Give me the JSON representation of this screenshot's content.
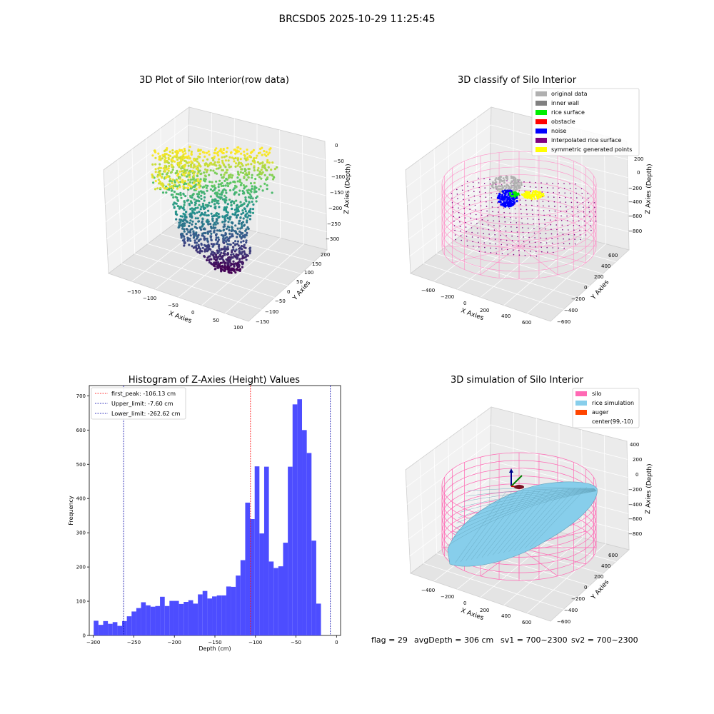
{
  "figure": {
    "suptitle": "BRCSD05 2025-10-29 11:25:45"
  },
  "footer": {
    "flag": "flag = 29",
    "avg_depth": "avgDepth = 306 cm",
    "sv1": "sv1 = 700~2300",
    "sv2": "sv2 = 700~2300"
  },
  "chart_data": [
    {
      "type": "scatter",
      "projection": "3d",
      "title": "3D Plot of Silo Interior(row data)",
      "xlabel": "X Axies",
      "ylabel": "Y Axies",
      "zlabel": "Z Axies (Depth)",
      "x_ticks": [
        "−150",
        "−100",
        "−50",
        "0",
        "50",
        "100"
      ],
      "y_ticks": [
        "−150",
        "−100",
        "−50",
        "0",
        "50",
        "100",
        "150",
        "200"
      ],
      "z_ticks": [
        "0",
        "−50",
        "−100",
        "−150",
        "−200",
        "−250",
        "−300"
      ],
      "colormap": "viridis",
      "zlim": [
        -310,
        0
      ]
    },
    {
      "type": "scatter",
      "projection": "3d",
      "title": "3D classify of Silo Interior",
      "xlabel": "X Axies",
      "ylabel": "Y Axies",
      "zlabel": "Z Axies (Depth)",
      "x_ticks": [
        "−400",
        "−200",
        "0",
        "200",
        "400",
        "600"
      ],
      "y_ticks": [
        "−600",
        "−400",
        "−200",
        "0",
        "200",
        "400",
        "600"
      ],
      "z_ticks": [
        "200",
        "0",
        "−200",
        "−400",
        "−600",
        "−800"
      ],
      "legend": [
        {
          "label": "original data",
          "color": "#b0b0b0"
        },
        {
          "label": "inner wall",
          "color": "#808080"
        },
        {
          "label": "rice surface",
          "color": "#00ee00"
        },
        {
          "label": "obstacle",
          "color": "#ff0000"
        },
        {
          "label": "noise",
          "color": "#0000ff"
        },
        {
          "label": "interpolated rice surface",
          "color": "#800080"
        },
        {
          "label": "symmetric generated points",
          "color": "#ffff00"
        }
      ],
      "legend_position": "top-right"
    },
    {
      "type": "bar",
      "title": "Histogram of Z-Axies (Height) Values",
      "xlabel": "Depth (cm)",
      "ylabel": "Frequency",
      "xlim": [
        -305,
        5
      ],
      "ylim": [
        0,
        730
      ],
      "x_ticks": [
        "−300",
        "−250",
        "−200",
        "−150",
        "−100",
        "−50",
        "0"
      ],
      "y_ticks": [
        "0",
        "100",
        "200",
        "300",
        "400",
        "500",
        "600",
        "700"
      ],
      "bar_color": "#4d4dff",
      "bins": {
        "start": -299.5,
        "width": 5.84
      },
      "values": [
        43,
        31,
        42,
        34,
        39,
        28,
        42,
        56,
        70,
        80,
        97,
        88,
        84,
        86,
        113,
        86,
        101,
        101,
        92,
        98,
        103,
        93,
        120,
        130,
        108,
        114,
        117,
        117,
        143,
        142,
        175,
        220,
        388,
        340,
        494,
        298,
        493,
        216,
        197,
        202,
        271,
        493,
        675,
        690,
        600,
        533,
        277,
        93
      ],
      "lines": [
        {
          "label": "first_peak: -106.13 cm",
          "x": -106.13,
          "color": "#ff0000"
        },
        {
          "label": "Upper_limit: -7.60 cm",
          "x": -7.6,
          "color": "#0000aa"
        },
        {
          "label": "Lower_limit: -262.62 cm",
          "x": -262.62,
          "color": "#0000aa"
        }
      ],
      "legend_position": "top-left"
    },
    {
      "type": "surface",
      "projection": "3d",
      "title": "3D simulation of Silo Interior",
      "xlabel": "X Axies",
      "ylabel": "Y Axies",
      "zlabel": "Z Axies (Depth)",
      "x_ticks": [
        "−400",
        "−200",
        "0",
        "200",
        "400",
        "600"
      ],
      "y_ticks": [
        "−600",
        "−400",
        "−200",
        "0",
        "200",
        "400",
        "600"
      ],
      "z_ticks": [
        "400",
        "200",
        "0",
        "−200",
        "−400",
        "−600",
        "−800"
      ],
      "legend": [
        {
          "label": "silo",
          "color": "#ff69b4"
        },
        {
          "label": "rice simulation",
          "color": "#87ceeb"
        },
        {
          "label": "auger",
          "color": "#ff4500"
        },
        {
          "label": "center(99,-10)",
          "color": ""
        }
      ],
      "legend_position": "top-right"
    }
  ]
}
